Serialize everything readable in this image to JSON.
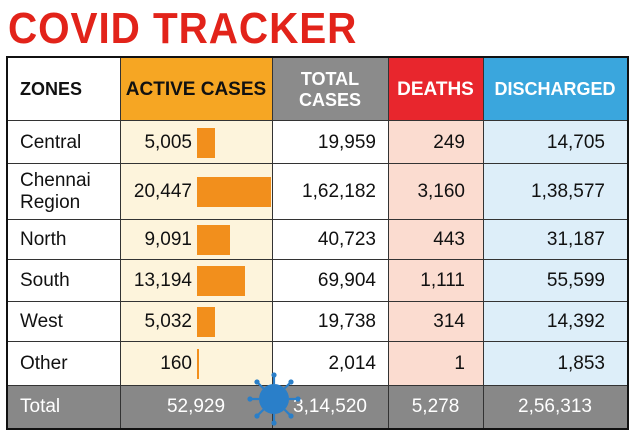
{
  "title": "COVID TRACKER",
  "headers": {
    "zone": "ZONES",
    "active": "ACTIVE CASES",
    "total": "TOTAL CASES",
    "deaths": "DEATHS",
    "discharged": "DISCHARGED"
  },
  "chart_data": {
    "type": "table",
    "columns": [
      "ZONES",
      "ACTIVE CASES",
      "TOTAL CASES",
      "DEATHS",
      "DISCHARGED"
    ],
    "rows": [
      {
        "zone": "Central",
        "active": "5,005",
        "active_value": 5005,
        "total": "19,959",
        "deaths": "249",
        "discharged": "14,705"
      },
      {
        "zone": "Chennai Region",
        "active": "20,447",
        "active_value": 20447,
        "total": "1,62,182",
        "deaths": "3,160",
        "discharged": "1,38,577"
      },
      {
        "zone": "North",
        "active": "9,091",
        "active_value": 9091,
        "total": "40,723",
        "deaths": "443",
        "discharged": "31,187"
      },
      {
        "zone": "South",
        "active": "13,194",
        "active_value": 13194,
        "total": "69,904",
        "deaths": "1,111",
        "discharged": "55,599"
      },
      {
        "zone": "West",
        "active": "5,032",
        "active_value": 5032,
        "total": "19,738",
        "deaths": "314",
        "discharged": "14,392"
      },
      {
        "zone": "Other",
        "active": "160",
        "active_value": 160,
        "total": "2,014",
        "deaths": "1",
        "discharged": "1,853"
      }
    ],
    "total_row": {
      "zone": "Total",
      "active": "52,929",
      "total": "3,14,520",
      "deaths": "5,278",
      "discharged": "2,56,313"
    }
  },
  "colors": {
    "title": "#e2231a",
    "active_header": "#f6a623",
    "active_bar": "#f28f1c",
    "total_header": "#8b8b8b",
    "deaths_header": "#e8262d",
    "discharged_header": "#3aa6dd",
    "footer": "#888888"
  },
  "decor": {
    "virus_icon": "coronavirus-icon"
  }
}
